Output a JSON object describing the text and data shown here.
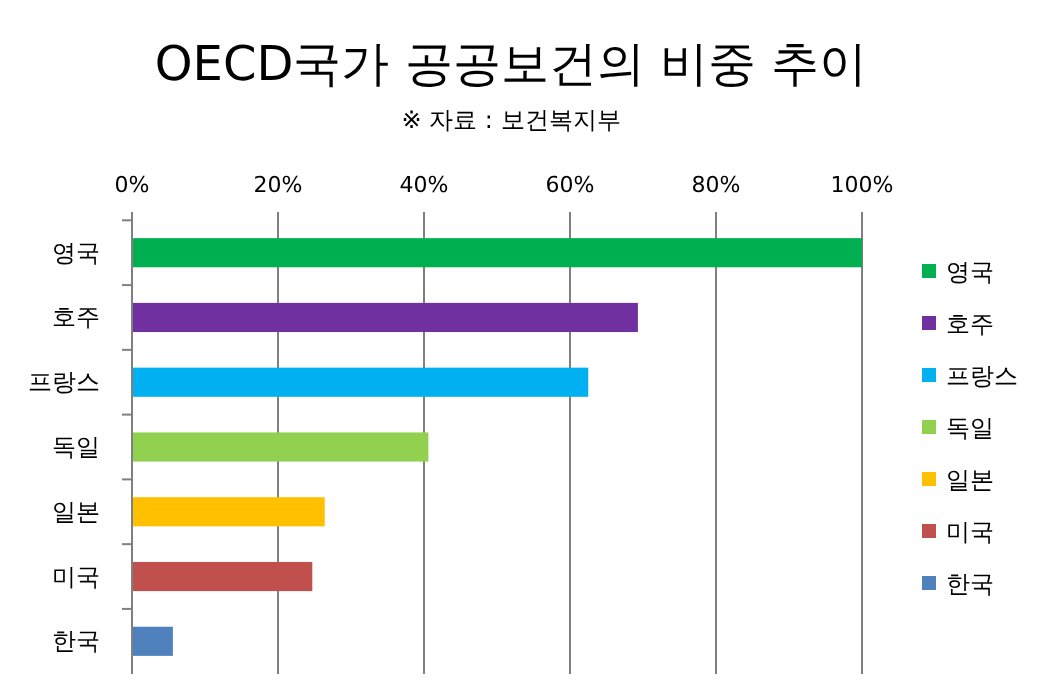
{
  "chart_data": {
    "type": "bar",
    "orientation": "horizontal",
    "stacked": true,
    "title": "OECD국가 공공보건의 비중 추이",
    "subtitle": "※ 자료 : 보건복지부",
    "categories": [
      "영국",
      "호주",
      "프랑스",
      "독일",
      "일본",
      "미국",
      "한국"
    ],
    "series": [
      {
        "name": "영국",
        "color": "#00b050",
        "values": [
          100,
          null,
          null,
          null,
          null,
          null,
          null
        ]
      },
      {
        "name": "호주",
        "color": "#7030a0",
        "values": [
          null,
          69.3,
          null,
          null,
          null,
          null,
          null
        ]
      },
      {
        "name": "프랑스",
        "color": "#00b0f0",
        "values": [
          null,
          null,
          62.5,
          null,
          null,
          null,
          null
        ]
      },
      {
        "name": "독일",
        "color": "#92d050",
        "values": [
          null,
          null,
          null,
          40.6,
          null,
          null,
          null
        ]
      },
      {
        "name": "일본",
        "color": "#ffc000",
        "values": [
          null,
          null,
          null,
          null,
          26.4,
          null,
          null
        ]
      },
      {
        "name": "미국",
        "color": "#c0504d",
        "values": [
          null,
          null,
          null,
          null,
          null,
          24.7,
          null
        ]
      },
      {
        "name": "한국",
        "color": "#4f81bd",
        "values": [
          null,
          null,
          null,
          null,
          null,
          null,
          5.6
        ]
      }
    ],
    "xlim": [
      0,
      100
    ],
    "xticks": [
      {
        "value": 0,
        "label": "0%"
      },
      {
        "value": 20,
        "label": "20%"
      },
      {
        "value": 40,
        "label": "40%"
      },
      {
        "value": 60,
        "label": "60%"
      },
      {
        "value": 80,
        "label": "80%"
      },
      {
        "value": 100,
        "label": "100%"
      }
    ],
    "grid": "x",
    "legend": "right"
  }
}
